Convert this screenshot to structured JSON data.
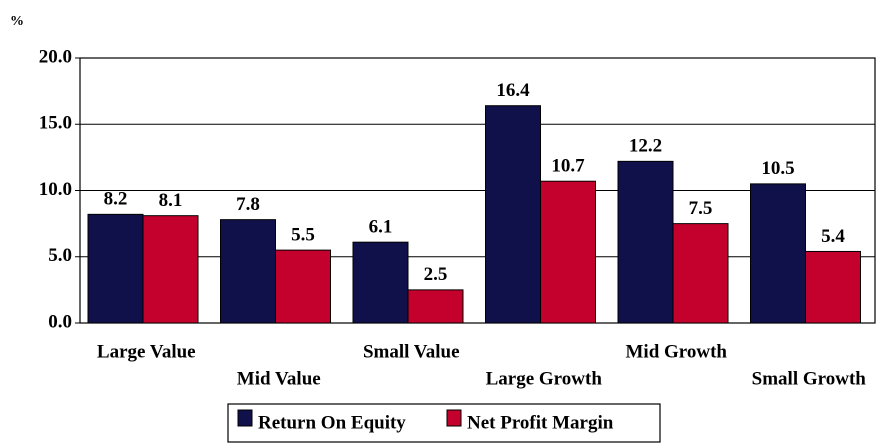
{
  "chart_data": {
    "type": "bar",
    "y_label": "%",
    "categories": [
      "Large Value",
      "Mid Value",
      "Small Value",
      "Large Growth",
      "Mid Growth",
      "Small Growth"
    ],
    "series": [
      {
        "name": "Return On Equity",
        "color": "#10104a",
        "values": [
          8.2,
          7.8,
          6.1,
          16.4,
          12.2,
          10.5
        ]
      },
      {
        "name": "Net Profit Margin",
        "color": "#c4002c",
        "values": [
          8.1,
          5.5,
          2.5,
          10.7,
          7.5,
          5.4
        ]
      }
    ],
    "ylim": [
      0,
      20
    ],
    "yticks": [
      {
        "value": 0,
        "label": "0.0"
      },
      {
        "value": 5,
        "label": "5.0"
      },
      {
        "value": 10,
        "label": "10.0"
      },
      {
        "value": 15,
        "label": "15.0"
      },
      {
        "value": 20,
        "label": "20.0"
      }
    ],
    "grid": true,
    "legend": "bottom"
  }
}
